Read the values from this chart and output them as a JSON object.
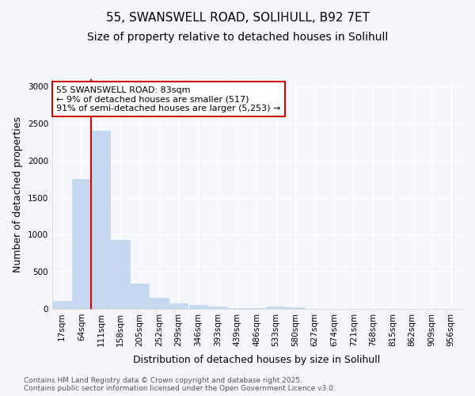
{
  "title_line1": "55, SWANSWELL ROAD, SOLIHULL, B92 7ET",
  "title_line2": "Size of property relative to detached houses in Solihull",
  "xlabel": "Distribution of detached houses by size in Solihull",
  "ylabel": "Number of detached properties",
  "categories": [
    "17sqm",
    "64sqm",
    "111sqm",
    "158sqm",
    "205sqm",
    "252sqm",
    "299sqm",
    "346sqm",
    "393sqm",
    "439sqm",
    "486sqm",
    "533sqm",
    "580sqm",
    "627sqm",
    "674sqm",
    "721sqm",
    "768sqm",
    "815sqm",
    "862sqm",
    "909sqm",
    "956sqm"
  ],
  "values": [
    110,
    1750,
    2400,
    925,
    340,
    150,
    80,
    50,
    30,
    10,
    10,
    30,
    20,
    0,
    0,
    0,
    0,
    0,
    0,
    0,
    0
  ],
  "bar_color": "#c5d8f0",
  "bar_edgecolor": "#c5d8f0",
  "vline_color": "#cc0000",
  "vline_x": 1.5,
  "annotation_text": "55 SWANSWELL ROAD: 83sqm\n← 9% of detached houses are smaller (517)\n91% of semi-detached houses are larger (5,253) →",
  "annotation_box_color": "#ffffff",
  "annotation_box_edgecolor": "#cc0000",
  "ylim": [
    0,
    3100
  ],
  "yticks": [
    0,
    500,
    1000,
    1500,
    2000,
    2500,
    3000
  ],
  "background_color": "#f5f7fc",
  "plot_background": "#f5f7fc",
  "grid_color": "#ffffff",
  "footer_text": "Contains HM Land Registry data © Crown copyright and database right 2025.\nContains public sector information licensed under the Open Government Licence v3.0.",
  "title_fontsize": 11,
  "subtitle_fontsize": 10,
  "axis_label_fontsize": 9,
  "tick_fontsize": 7.5,
  "annotation_fontsize": 8,
  "footer_fontsize": 6.5
}
